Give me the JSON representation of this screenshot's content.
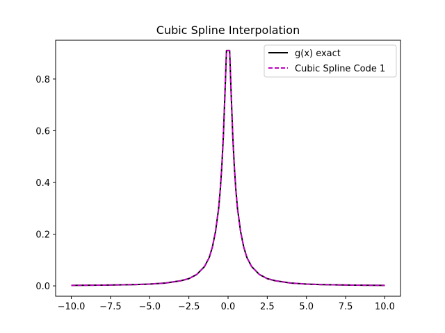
{
  "chart_data": {
    "type": "line",
    "title": "Cubic Spline Interpolation",
    "xlabel": "",
    "ylabel": "",
    "xlim": [
      -11,
      11
    ],
    "ylim": [
      -0.04,
      0.95
    ],
    "x_ticks": [
      -10.0,
      -7.5,
      -5.0,
      -2.5,
      0.0,
      2.5,
      5.0,
      7.5,
      10.0
    ],
    "x_tick_labels": [
      "−10.0",
      "−7.5",
      "−5.0",
      "−2.5",
      "0.0",
      "2.5",
      "5.0",
      "7.5",
      "10.0"
    ],
    "y_ticks": [
      0.0,
      0.2,
      0.4,
      0.6,
      0.8
    ],
    "y_tick_labels": [
      "0.0",
      "0.2",
      "0.4",
      "0.6",
      "0.8"
    ],
    "grid": false,
    "legend_position": "top-right",
    "series": [
      {
        "name": "g(x) exact",
        "color": "#000000",
        "style": "solid",
        "x": [
          -10.0,
          -8.0,
          -6.0,
          -5.0,
          -4.0,
          -3.0,
          -2.5,
          -2.0,
          -1.5,
          -1.2,
          -1.0,
          -0.8,
          -0.6,
          -0.5,
          -0.4,
          -0.3,
          -0.2,
          -0.1,
          0.0,
          0.1,
          0.2,
          0.3,
          0.4,
          0.5,
          0.6,
          0.8,
          1.0,
          1.2,
          1.5,
          2.0,
          2.5,
          3.0,
          4.0,
          5.0,
          6.0,
          8.0,
          10.0
        ],
        "y": [
          0.002,
          0.003,
          0.005,
          0.007,
          0.011,
          0.02,
          0.028,
          0.044,
          0.075,
          0.11,
          0.15,
          0.21,
          0.3,
          0.37,
          0.46,
          0.58,
          0.74,
          0.91,
          0.91,
          0.91,
          0.74,
          0.58,
          0.46,
          0.37,
          0.3,
          0.21,
          0.15,
          0.11,
          0.075,
          0.044,
          0.028,
          0.02,
          0.011,
          0.007,
          0.005,
          0.003,
          0.002
        ]
      },
      {
        "name": "Cubic Spline Code 1",
        "color": "#bf00bf",
        "style": "dashed",
        "x": [
          -10.0,
          -8.0,
          -6.0,
          -5.0,
          -4.0,
          -3.0,
          -2.5,
          -2.0,
          -1.5,
          -1.2,
          -1.0,
          -0.8,
          -0.6,
          -0.5,
          -0.4,
          -0.3,
          -0.2,
          -0.1,
          0.0,
          0.1,
          0.2,
          0.3,
          0.4,
          0.5,
          0.6,
          0.8,
          1.0,
          1.2,
          1.5,
          2.0,
          2.5,
          3.0,
          4.0,
          5.0,
          6.0,
          8.0,
          10.0
        ],
        "y": [
          0.002,
          0.003,
          0.005,
          0.007,
          0.011,
          0.02,
          0.028,
          0.044,
          0.075,
          0.11,
          0.15,
          0.21,
          0.3,
          0.37,
          0.46,
          0.58,
          0.74,
          0.91,
          0.91,
          0.91,
          0.74,
          0.58,
          0.46,
          0.37,
          0.3,
          0.21,
          0.15,
          0.11,
          0.075,
          0.044,
          0.028,
          0.02,
          0.011,
          0.007,
          0.005,
          0.003,
          0.002
        ]
      }
    ]
  }
}
